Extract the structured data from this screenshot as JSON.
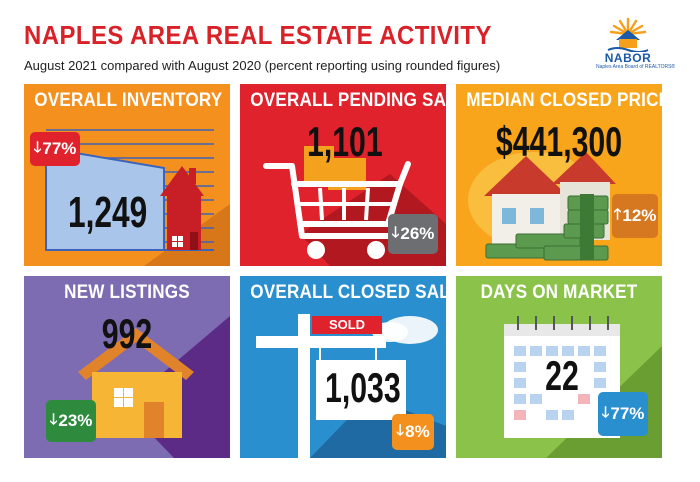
{
  "header": {
    "title": "NAPLES AREA REAL ESTATE ACTIVITY",
    "subtitle": "August 2021 compared with August 2020 (percent reporting using rounded figures)"
  },
  "logo": {
    "name": "NABOR",
    "tagline": "Naples Area Board of REALTORS®"
  },
  "tiles": [
    {
      "label": "OVERALL INVENTORY",
      "value": "1,249",
      "change": "77%",
      "direction": "down",
      "color": "#f4901e",
      "badge_color": "#e0222c",
      "icon": "house-on-chart-icon"
    },
    {
      "label": "OVERALL PENDING SALES",
      "value": "1,101",
      "change": "26%",
      "direction": "down",
      "color": "#e0222c",
      "badge_color": "#6d6e71",
      "icon": "shopping-cart-icon"
    },
    {
      "label": "MEDIAN CLOSED PRICE",
      "value": "$441,300",
      "change": "12%",
      "direction": "up",
      "color": "#f9a51b",
      "badge_color": "#d5781f",
      "icon": "house-with-money-icon"
    },
    {
      "label": "NEW LISTINGS",
      "value": "992",
      "change": "23%",
      "direction": "down",
      "color": "#7d6cb1",
      "badge_color": "#2e8b3e",
      "icon": "house-icon"
    },
    {
      "label": "OVERALL CLOSED SALES",
      "value": "1,033",
      "change": "8%",
      "direction": "down",
      "color": "#2a8fce",
      "badge_color": "#f4901e",
      "icon": "sold-sign-icon"
    },
    {
      "label": "DAYS ON MARKET",
      "value": "22",
      "change": "77%",
      "direction": "down",
      "color": "#8bc34a",
      "badge_color": "#2a8fce",
      "icon": "calendar-icon"
    }
  ],
  "sold_sign_text": "SOLD",
  "arrows": {
    "down": "🡓",
    "up": "🡑"
  }
}
